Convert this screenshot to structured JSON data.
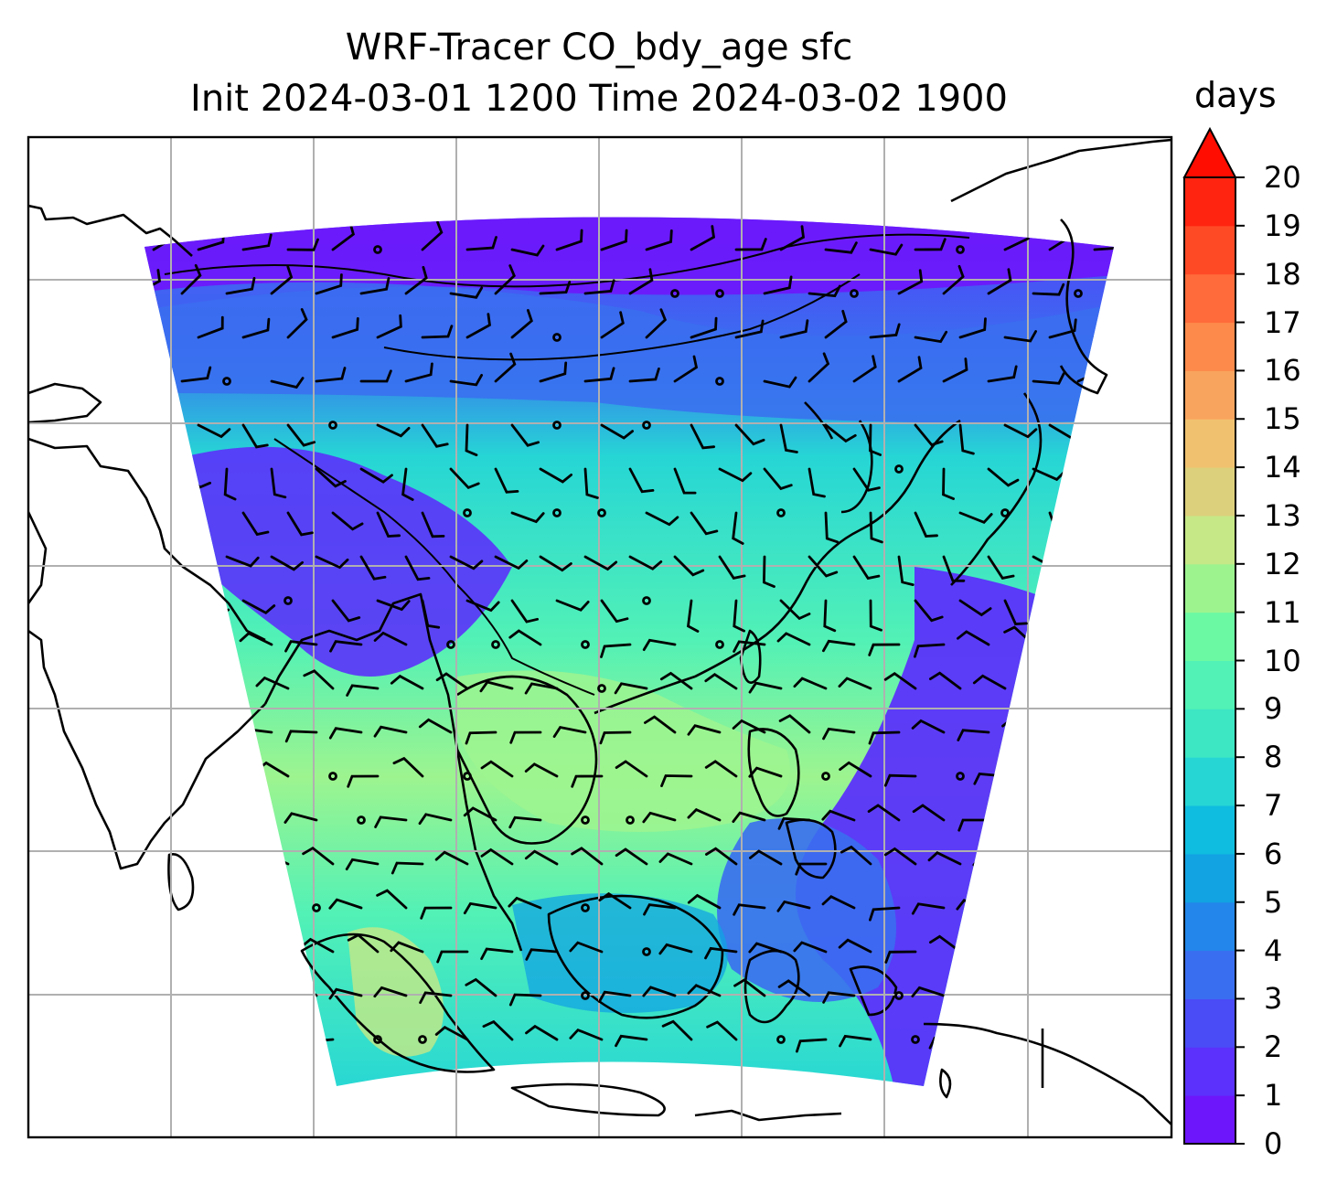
{
  "title": {
    "line1": "WRF-Tracer CO_bdy_age sfc",
    "line2": "Init 2024-03-01 1200 Time 2024-03-02 1900"
  },
  "colorbar": {
    "units": "days",
    "extend": "max",
    "ticks": [
      "0",
      "1",
      "2",
      "3",
      "4",
      "5",
      "6",
      "7",
      "8",
      "9",
      "10",
      "11",
      "12",
      "13",
      "14",
      "15",
      "16",
      "17",
      "18",
      "19",
      "20"
    ],
    "colors": [
      "#6e16fb",
      "#5b31fb",
      "#4a4cf6",
      "#3a6ef0",
      "#2386ea",
      "#12a3e3",
      "#0fbde0",
      "#26d6d5",
      "#3de7c4",
      "#52f1b6",
      "#6cf9a4",
      "#9df48f",
      "#c6e886",
      "#dcd07c",
      "#f0c270",
      "#f9a45e",
      "#fd8a4a",
      "#ff6b3a",
      "#ff4a26",
      "#ff2410",
      "#ff0d00"
    ]
  },
  "map": {
    "projection": "lambert-conformal",
    "field": "CO_bdy_age",
    "gridlines": true,
    "colors": {
      "field_low": "#6e16fb",
      "field_mid": "#3de7c4",
      "field_high": "#9df48f",
      "coastline": "#000000",
      "gridline": "#b0b0b0"
    }
  }
}
